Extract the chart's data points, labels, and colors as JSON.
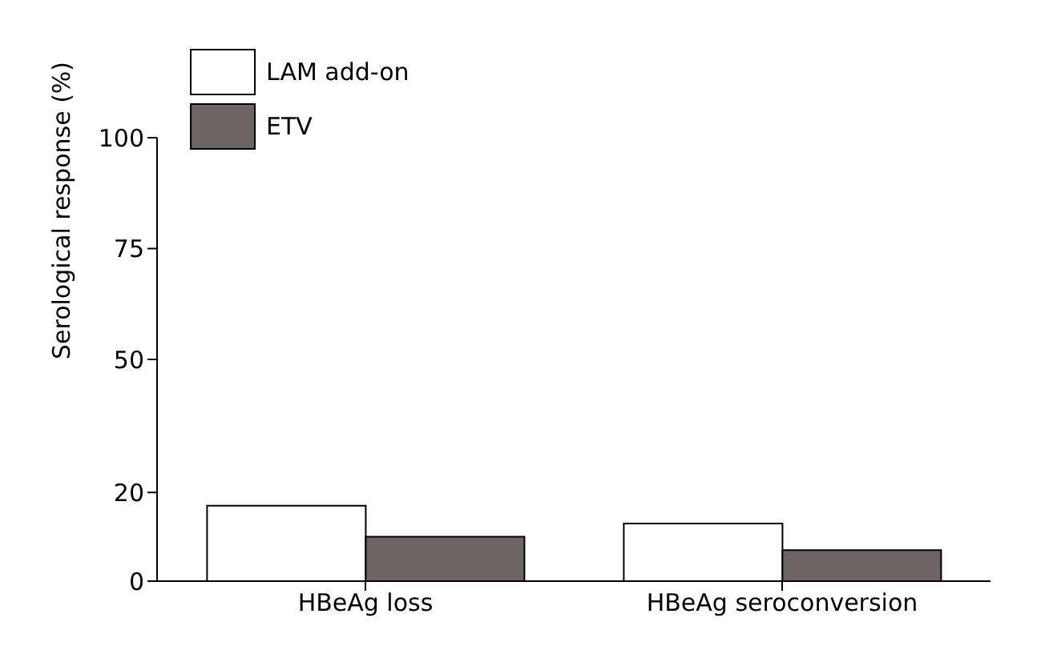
{
  "chart_data": {
    "type": "bar",
    "ylabel": "Serological response (%)",
    "categories": [
      "HBeAg loss",
      "HBeAg seroconversion"
    ],
    "series": [
      {
        "name": "LAM add-on",
        "color": "#ffffff",
        "values": [
          17,
          13
        ]
      },
      {
        "name": "ETV",
        "color": "#6d6466",
        "values": [
          10,
          7
        ]
      }
    ],
    "ylim": [
      0,
      100
    ],
    "yticks": [
      0,
      20,
      50,
      75,
      100
    ],
    "grid": false,
    "legend": "top left"
  }
}
